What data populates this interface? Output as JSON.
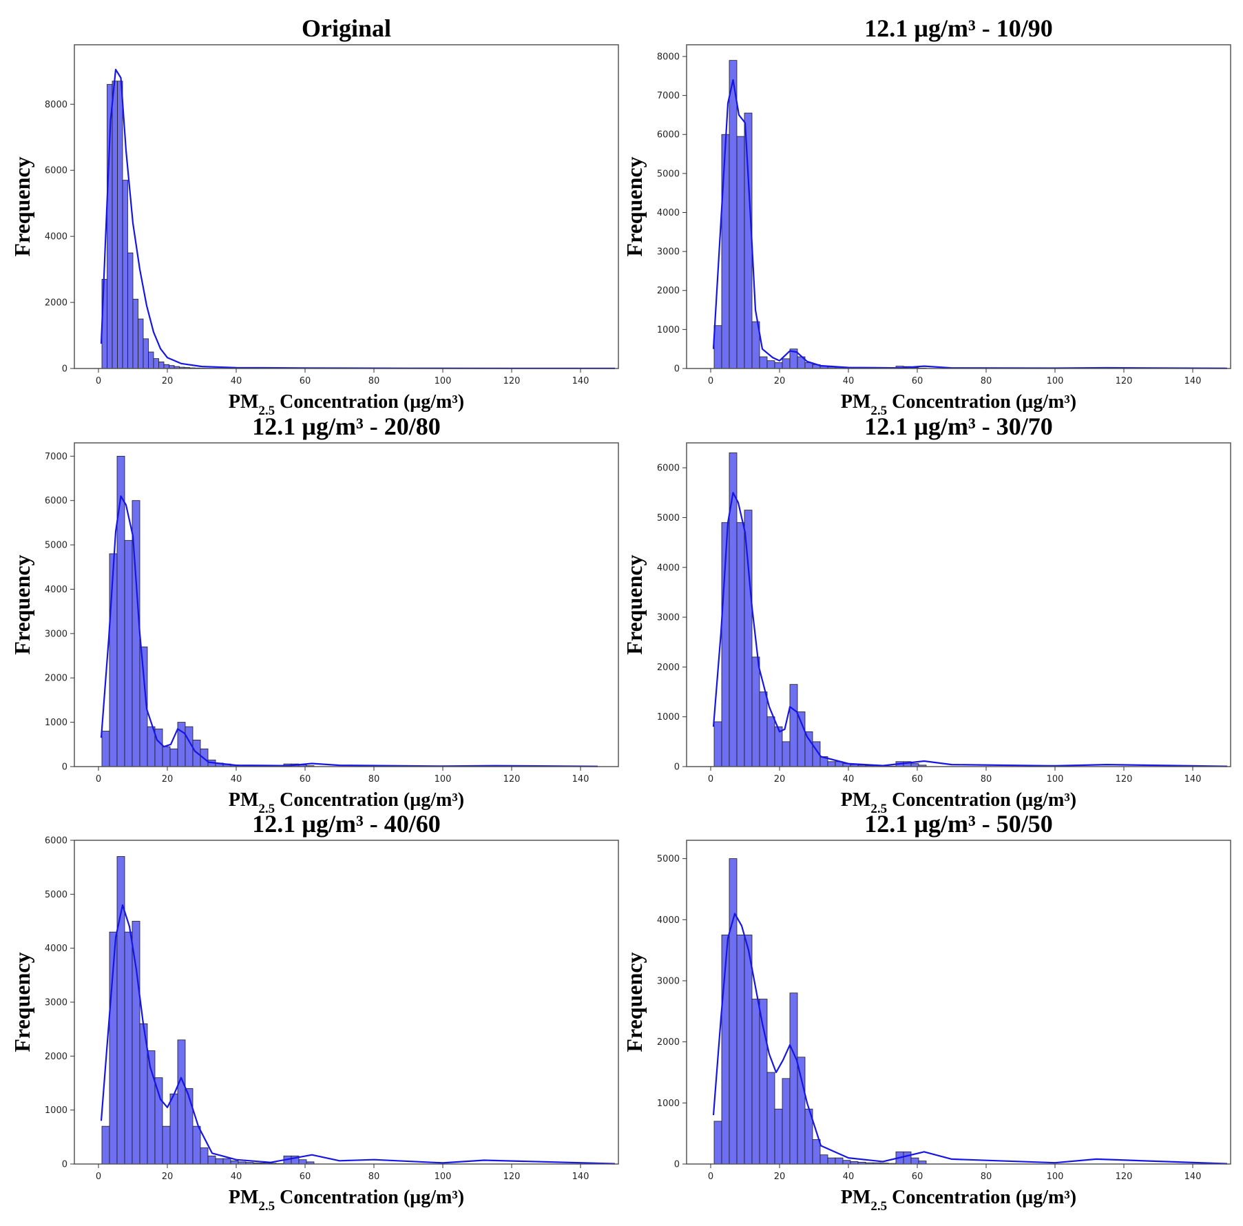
{
  "colors": {
    "bar_fill": "#6f6ff2",
    "kde": "#1515e6"
  },
  "chart_data": [
    {
      "type": "bar",
      "title": "Original",
      "xlabel_prefix": "PM",
      "xlabel_sub": "2.5",
      "xlabel_suffix": " Concentration (µg/m³)",
      "ylabel": "Frequency",
      "xlim": [
        -7,
        151
      ],
      "ylim": [
        0,
        9800
      ],
      "xticks": [
        0,
        20,
        40,
        60,
        80,
        100,
        120,
        140
      ],
      "yticks": [
        0,
        2000,
        4000,
        6000,
        8000
      ],
      "bin_start": 1,
      "bin_width": 1.5,
      "values": [
        2700,
        8600,
        8700,
        8700,
        5700,
        3500,
        2100,
        1500,
        900,
        500,
        300,
        200,
        120,
        90,
        60,
        40,
        30,
        20,
        15,
        10,
        8,
        6,
        5,
        4
      ],
      "kde": [
        [
          0.8,
          750
        ],
        [
          2,
          3800
        ],
        [
          3.5,
          7500
        ],
        [
          5,
          9050
        ],
        [
          6.5,
          8800
        ],
        [
          8,
          6600
        ],
        [
          10,
          4400
        ],
        [
          12,
          3000
        ],
        [
          14,
          1900
        ],
        [
          16,
          1100
        ],
        [
          18,
          600
        ],
        [
          20,
          330
        ],
        [
          24,
          150
        ],
        [
          30,
          60
        ],
        [
          40,
          25
        ],
        [
          60,
          12
        ],
        [
          90,
          6
        ],
        [
          120,
          3
        ],
        [
          150,
          2
        ]
      ]
    },
    {
      "type": "bar",
      "title": "12.1 µg/m³ - 10/90",
      "xlabel_prefix": "PM",
      "xlabel_sub": "2.5",
      "xlabel_suffix": " Concentration (µg/m³)",
      "ylabel": "Frequency",
      "xlim": [
        -7,
        151
      ],
      "ylim": [
        0,
        8300
      ],
      "xticks": [
        0,
        20,
        40,
        60,
        80,
        100,
        120,
        140
      ],
      "yticks": [
        0,
        1000,
        2000,
        3000,
        4000,
        5000,
        6000,
        7000,
        8000
      ],
      "bin_start": 1,
      "bin_width": 2.2,
      "values": [
        1100,
        6000,
        7900,
        5950,
        6550,
        1200,
        300,
        200,
        150,
        250,
        500,
        300,
        150,
        100,
        60,
        40,
        30,
        30,
        20,
        20,
        15,
        15,
        10,
        10,
        60,
        50,
        20,
        10
      ],
      "kde": [
        [
          0.8,
          500
        ],
        [
          3,
          3800
        ],
        [
          5,
          6800
        ],
        [
          6.5,
          7400
        ],
        [
          8.2,
          6500
        ],
        [
          10,
          6300
        ],
        [
          11.5,
          4000
        ],
        [
          13,
          1500
        ],
        [
          15,
          500
        ],
        [
          18,
          280
        ],
        [
          20,
          200
        ],
        [
          23,
          450
        ],
        [
          25,
          420
        ],
        [
          28,
          180
        ],
        [
          32,
          70
        ],
        [
          40,
          25
        ],
        [
          55,
          15
        ],
        [
          62,
          60
        ],
        [
          70,
          15
        ],
        [
          100,
          8
        ],
        [
          115,
          18
        ],
        [
          150,
          3
        ]
      ]
    },
    {
      "type": "bar",
      "title": "12.1 µg/m³ - 20/80",
      "xlabel_prefix": "PM",
      "xlabel_sub": "2.5",
      "xlabel_suffix": " Concentration (µg/m³)",
      "ylabel": "Frequency",
      "xlim": [
        -7,
        151
      ],
      "ylim": [
        0,
        7300
      ],
      "xticks": [
        0,
        20,
        40,
        60,
        80,
        100,
        120,
        140
      ],
      "yticks": [
        0,
        1000,
        2000,
        3000,
        4000,
        5000,
        6000,
        7000
      ],
      "bin_start": 1,
      "bin_width": 2.2,
      "values": [
        800,
        4800,
        7000,
        5100,
        6000,
        2700,
        900,
        850,
        450,
        400,
        1000,
        900,
        600,
        400,
        150,
        80,
        60,
        40,
        30,
        20,
        20,
        15,
        15,
        10,
        60,
        60,
        40,
        20
      ],
      "kde": [
        [
          0.8,
          650
        ],
        [
          3,
          2900
        ],
        [
          5,
          5300
        ],
        [
          6.5,
          6100
        ],
        [
          8,
          5900
        ],
        [
          10,
          5200
        ],
        [
          12,
          3000
        ],
        [
          14,
          1300
        ],
        [
          17,
          600
        ],
        [
          19,
          450
        ],
        [
          21,
          500
        ],
        [
          23,
          850
        ],
        [
          25,
          750
        ],
        [
          28,
          350
        ],
        [
          32,
          100
        ],
        [
          40,
          30
        ],
        [
          55,
          20
        ],
        [
          62,
          70
        ],
        [
          70,
          30
        ],
        [
          100,
          10
        ],
        [
          115,
          20
        ],
        [
          145,
          5
        ]
      ]
    },
    {
      "type": "bar",
      "title": "12.1 µg/m³ - 30/70",
      "xlabel_prefix": "PM",
      "xlabel_sub": "2.5",
      "xlabel_suffix": " Concentration (µg/m³)",
      "ylabel": "Frequency",
      "xlim": [
        -7,
        151
      ],
      "ylim": [
        0,
        6500
      ],
      "xticks": [
        0,
        20,
        40,
        60,
        80,
        100,
        120,
        140
      ],
      "yticks": [
        0,
        1000,
        2000,
        3000,
        4000,
        5000,
        6000
      ],
      "bin_start": 1,
      "bin_width": 2.2,
      "values": [
        900,
        4900,
        6300,
        4900,
        5150,
        2200,
        1500,
        1000,
        800,
        500,
        1650,
        1100,
        700,
        500,
        200,
        100,
        100,
        60,
        40,
        30,
        20,
        20,
        15,
        10,
        100,
        100,
        60,
        30
      ],
      "kde": [
        [
          0.8,
          800
        ],
        [
          3,
          2700
        ],
        [
          5,
          4900
        ],
        [
          6.5,
          5500
        ],
        [
          8,
          5300
        ],
        [
          10,
          4700
        ],
        [
          12,
          3200
        ],
        [
          14,
          2000
        ],
        [
          17,
          1200
        ],
        [
          20,
          700
        ],
        [
          21.5,
          750
        ],
        [
          23,
          1200
        ],
        [
          25,
          1100
        ],
        [
          28,
          600
        ],
        [
          32,
          200
        ],
        [
          40,
          60
        ],
        [
          50,
          20
        ],
        [
          62,
          110
        ],
        [
          70,
          40
        ],
        [
          100,
          15
        ],
        [
          115,
          40
        ],
        [
          150,
          5
        ]
      ]
    },
    {
      "type": "bar",
      "title": "12.1 µg/m³ - 40/60",
      "xlabel_prefix": "PM",
      "xlabel_sub": "2.5",
      "xlabel_suffix": " Concentration (µg/m³)",
      "ylabel": "Frequency",
      "xlim": [
        -7,
        151
      ],
      "ylim": [
        0,
        6000
      ],
      "xticks": [
        0,
        20,
        40,
        60,
        80,
        100,
        120,
        140
      ],
      "yticks": [
        0,
        1000,
        2000,
        3000,
        4000,
        5000,
        6000
      ],
      "bin_start": 1,
      "bin_width": 2.2,
      "values": [
        700,
        4300,
        5700,
        4300,
        4500,
        2600,
        2100,
        1600,
        700,
        1300,
        2300,
        1400,
        700,
        300,
        150,
        100,
        100,
        60,
        40,
        30,
        20,
        20,
        15,
        10,
        150,
        150,
        80,
        40
      ],
      "kde": [
        [
          0.8,
          800
        ],
        [
          3,
          2600
        ],
        [
          5,
          4200
        ],
        [
          7,
          4800
        ],
        [
          9,
          4400
        ],
        [
          11,
          3600
        ],
        [
          13,
          2600
        ],
        [
          15,
          1800
        ],
        [
          18,
          1200
        ],
        [
          20,
          1050
        ],
        [
          22,
          1300
        ],
        [
          24,
          1600
        ],
        [
          26,
          1300
        ],
        [
          29,
          700
        ],
        [
          33,
          200
        ],
        [
          40,
          80
        ],
        [
          50,
          30
        ],
        [
          62,
          170
        ],
        [
          70,
          60
        ],
        [
          80,
          80
        ],
        [
          100,
          20
        ],
        [
          112,
          70
        ],
        [
          150,
          5
        ]
      ]
    },
    {
      "type": "bar",
      "title": "12.1 µg/m³ - 50/50",
      "xlabel_prefix": "PM",
      "xlabel_sub": "2.5",
      "xlabel_suffix": " Concentration (µg/m³)",
      "ylabel": "Frequency",
      "xlim": [
        -7,
        151
      ],
      "ylim": [
        0,
        5300
      ],
      "xticks": [
        0,
        20,
        40,
        60,
        80,
        100,
        120,
        140
      ],
      "yticks": [
        0,
        1000,
        2000,
        3000,
        4000,
        5000
      ],
      "bin_start": 1,
      "bin_width": 2.2,
      "values": [
        700,
        3750,
        5000,
        3750,
        3750,
        2700,
        2700,
        1500,
        900,
        1400,
        2800,
        1750,
        900,
        400,
        150,
        100,
        100,
        60,
        40,
        30,
        20,
        20,
        15,
        10,
        200,
        200,
        100,
        50
      ],
      "kde": [
        [
          0.8,
          800
        ],
        [
          3,
          2400
        ],
        [
          5,
          3700
        ],
        [
          7,
          4100
        ],
        [
          9,
          3900
        ],
        [
          11,
          3500
        ],
        [
          13,
          2900
        ],
        [
          15,
          2300
        ],
        [
          17,
          1800
        ],
        [
          19,
          1500
        ],
        [
          21,
          1700
        ],
        [
          23,
          1950
        ],
        [
          25,
          1700
        ],
        [
          28,
          1000
        ],
        [
          32,
          300
        ],
        [
          40,
          100
        ],
        [
          50,
          40
        ],
        [
          62,
          200
        ],
        [
          70,
          80
        ],
        [
          80,
          60
        ],
        [
          100,
          20
        ],
        [
          112,
          80
        ],
        [
          150,
          5
        ]
      ]
    }
  ]
}
